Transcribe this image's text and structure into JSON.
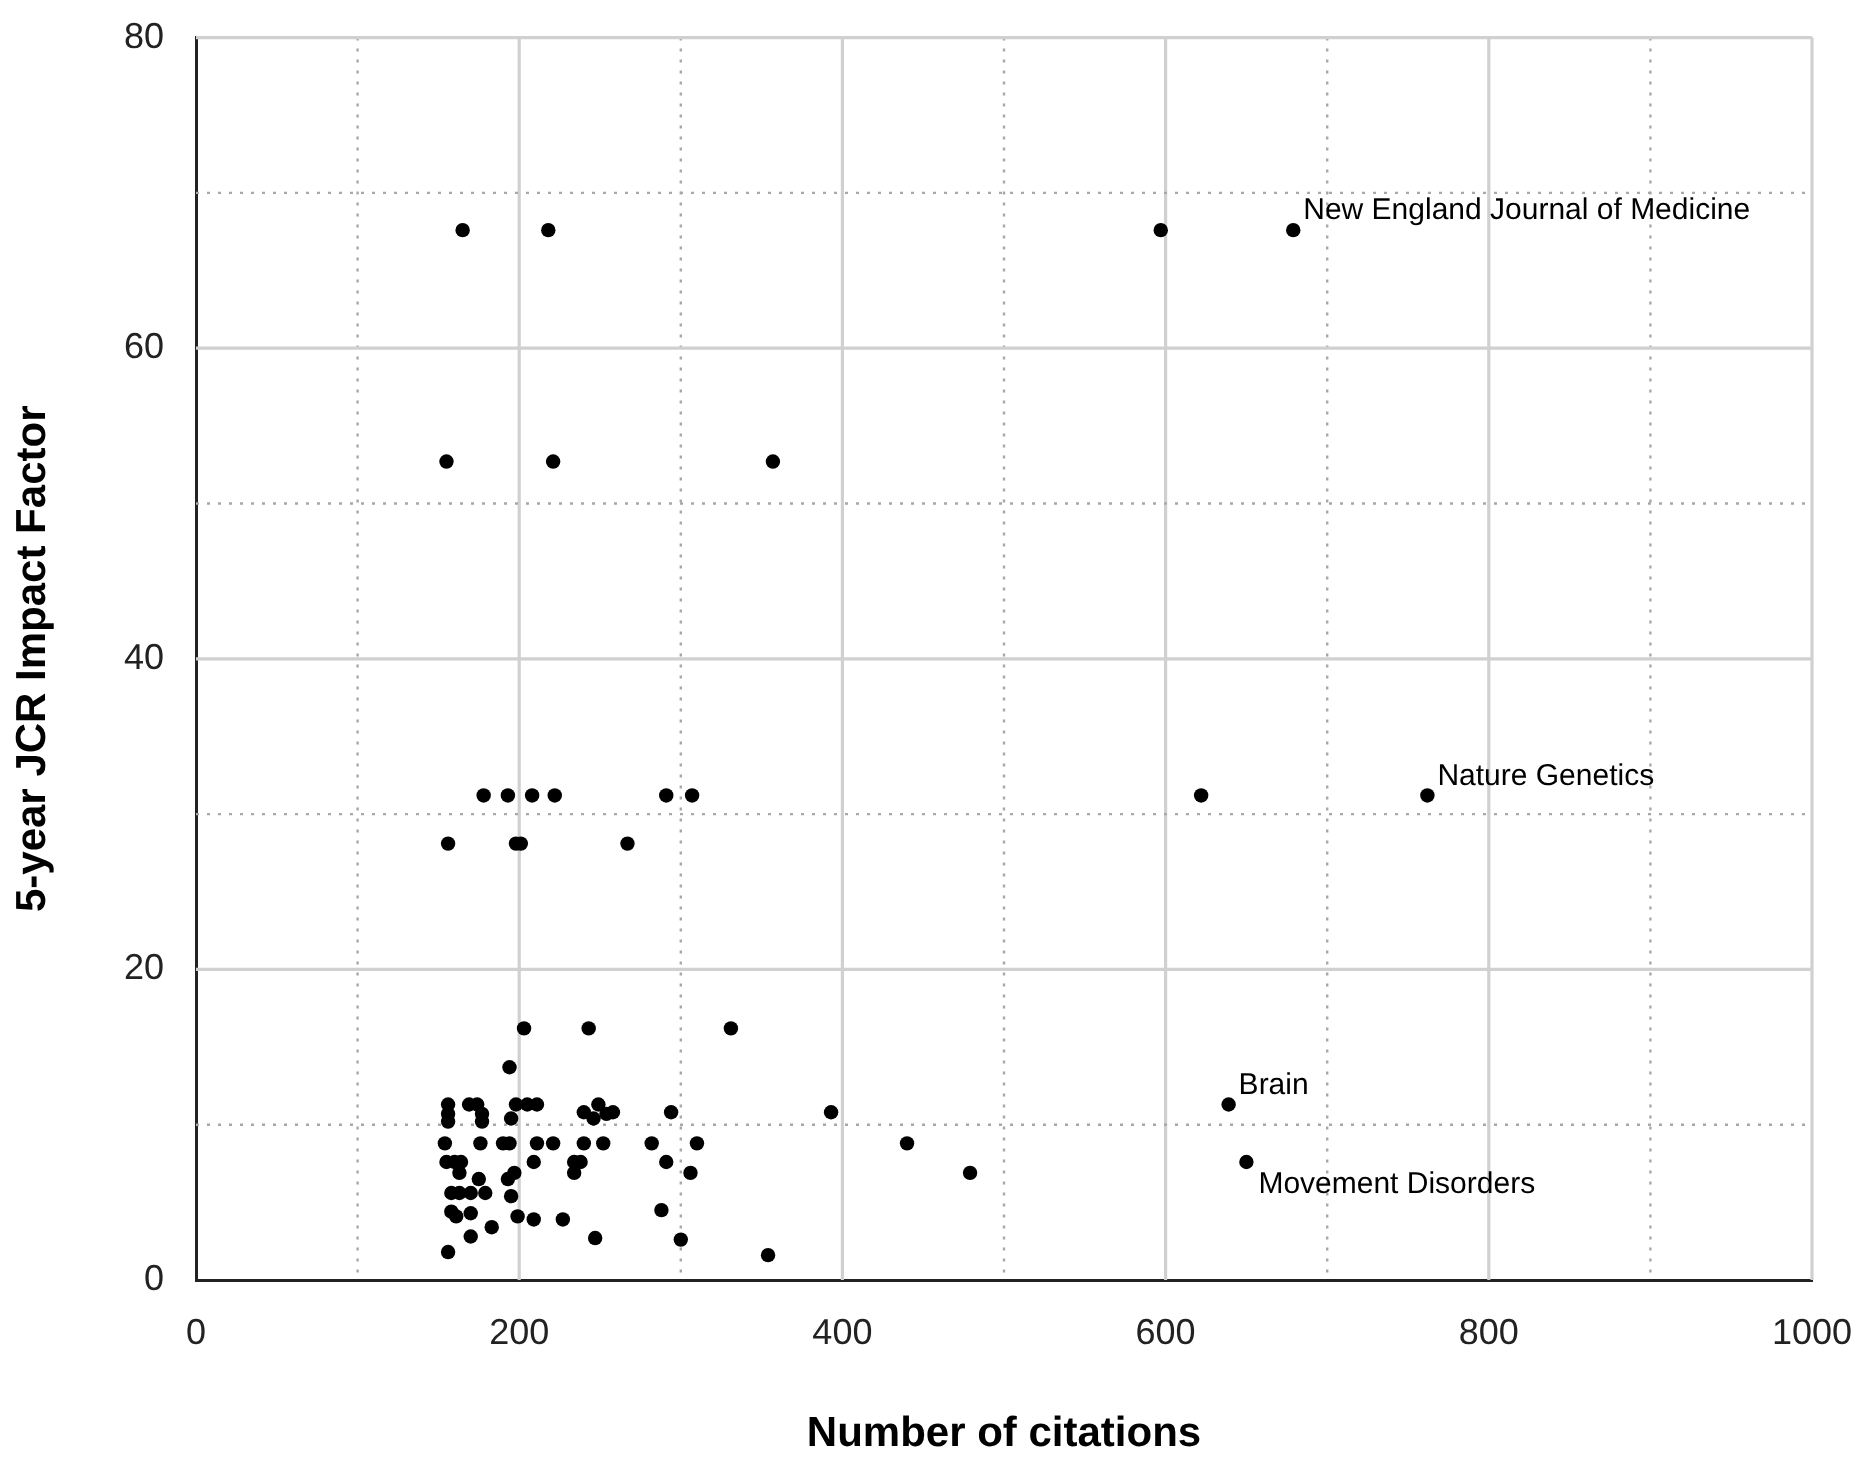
{
  "chart_data": {
    "type": "scatter",
    "xlabel": "Number of citations",
    "ylabel": "5-year JCR Impact Factor",
    "xlim": [
      0,
      1000
    ],
    "ylim": [
      0,
      80
    ],
    "xticks": [
      0,
      {
        "value": 100,
        "label": null
      },
      200,
      {
        "value": 300,
        "label": null
      },
      400,
      {
        "value": 500,
        "label": null
      },
      600,
      {
        "value": 700,
        "label": null
      },
      800,
      {
        "value": 900,
        "label": null
      },
      1000
    ],
    "yticks": [
      0,
      {
        "value": 10,
        "label": null
      },
      20,
      {
        "value": 30,
        "label": null
      },
      40,
      {
        "value": 50,
        "label": null
      },
      60,
      {
        "value": 70,
        "label": null
      },
      80
    ],
    "grid": true,
    "legend": false,
    "marker": "circle",
    "series": [
      {
        "color": "#000000",
        "x": [
          165,
          218,
          597,
          679,
          155,
          221,
          357,
          178,
          193,
          208,
          222,
          291,
          307,
          622,
          762,
          156,
          198,
          201,
          267,
          203,
          243,
          194,
          156,
          156,
          156,
          169,
          174,
          177,
          177,
          198,
          205,
          211,
          195,
          240,
          249,
          246,
          254,
          258,
          294,
          154,
          176,
          190,
          194,
          211,
          221,
          240,
          252,
          282,
          310,
          155,
          160,
          164,
          209,
          234,
          291,
          234,
          238,
          163,
          306,
          175,
          193,
          197,
          158,
          163,
          170,
          179,
          195,
          288,
          158,
          161,
          170,
          199,
          209,
          227,
          183,
          170,
          247,
          300,
          156,
          331,
          393,
          440,
          479,
          354,
          639,
          650
        ],
        "values": [
          67.6,
          67.6,
          67.6,
          67.6,
          52.7,
          52.7,
          52.7,
          31.2,
          31.2,
          31.2,
          31.2,
          31.2,
          31.2,
          31.2,
          31.2,
          28.1,
          28.1,
          28.1,
          28.1,
          16.2,
          16.2,
          13.7,
          11.3,
          10.7,
          10.2,
          11.3,
          11.3,
          10.7,
          10.2,
          11.3,
          11.3,
          11.3,
          10.4,
          10.8,
          11.3,
          10.4,
          10.7,
          10.8,
          10.8,
          8.8,
          8.8,
          8.8,
          8.8,
          8.8,
          8.8,
          8.8,
          8.8,
          8.8,
          8.8,
          7.6,
          7.6,
          7.6,
          7.6,
          7.6,
          7.6,
          6.9,
          7.6,
          6.9,
          6.9,
          6.5,
          6.5,
          6.9,
          5.6,
          5.6,
          5.6,
          5.6,
          5.4,
          4.5,
          4.4,
          4.1,
          4.3,
          4.1,
          3.9,
          3.9,
          3.4,
          2.8,
          2.7,
          2.6,
          1.8,
          16.2,
          10.8,
          8.8,
          6.9,
          1.6,
          11.3,
          7.6
        ]
      }
    ],
    "annotations": [
      {
        "text": "New England Journal of Medicine",
        "x": 679,
        "y": 67.6
      },
      {
        "text": "Nature Genetics",
        "x": 762,
        "y": 31.2
      },
      {
        "text": "Brain",
        "x": 639,
        "y": 11.3
      },
      {
        "text": "Movement Disorders",
        "x": 650,
        "y": 7.6
      }
    ]
  }
}
